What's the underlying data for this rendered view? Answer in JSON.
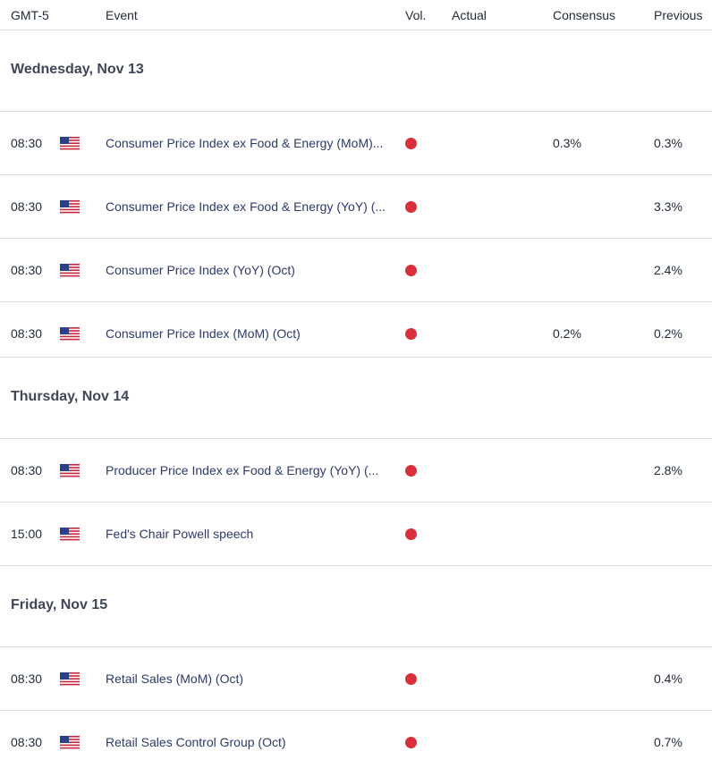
{
  "header": {
    "timezone": "GMT-5",
    "event": "Event",
    "vol": "Vol.",
    "actual": "Actual",
    "consensus": "Consensus",
    "previous": "Previous"
  },
  "colors": {
    "volatility_high": "#d9313c",
    "event_text": "#2d3a6b",
    "divider": "#d9dde3"
  },
  "days": [
    {
      "label": "Wednesday, Nov 13",
      "events": [
        {
          "time": "08:30",
          "flag": "us-flag-icon",
          "name": "Consumer Price Index ex Food & Energy (MoM)...",
          "volatility": "high",
          "actual": "",
          "consensus": "0.3%",
          "previous": "0.3%"
        },
        {
          "time": "08:30",
          "flag": "us-flag-icon",
          "name": "Consumer Price Index ex Food & Energy (YoY) (...",
          "volatility": "high",
          "actual": "",
          "consensus": "",
          "previous": "3.3%"
        },
        {
          "time": "08:30",
          "flag": "us-flag-icon",
          "name": "Consumer Price Index (YoY) (Oct)",
          "volatility": "high",
          "actual": "",
          "consensus": "",
          "previous": "2.4%"
        },
        {
          "time": "08:30",
          "flag": "us-flag-icon",
          "name": "Consumer Price Index (MoM) (Oct)",
          "volatility": "high",
          "actual": "",
          "consensus": "0.2%",
          "previous": "0.2%"
        }
      ]
    },
    {
      "label": "Thursday, Nov 14",
      "events": [
        {
          "time": "08:30",
          "flag": "us-flag-icon",
          "name": "Producer Price Index ex Food & Energy (YoY) (...",
          "volatility": "high",
          "actual": "",
          "consensus": "",
          "previous": "2.8%"
        },
        {
          "time": "15:00",
          "flag": "us-flag-icon",
          "name": "Fed's Chair Powell speech",
          "volatility": "high",
          "actual": "",
          "consensus": "",
          "previous": ""
        }
      ]
    },
    {
      "label": "Friday, Nov 15",
      "events": [
        {
          "time": "08:30",
          "flag": "us-flag-icon",
          "name": "Retail Sales (MoM) (Oct)",
          "volatility": "high",
          "actual": "",
          "consensus": "",
          "previous": "0.4%"
        },
        {
          "time": "08:30",
          "flag": "us-flag-icon",
          "name": "Retail Sales Control Group (Oct)",
          "volatility": "high",
          "actual": "",
          "consensus": "",
          "previous": "0.7%"
        }
      ]
    }
  ]
}
